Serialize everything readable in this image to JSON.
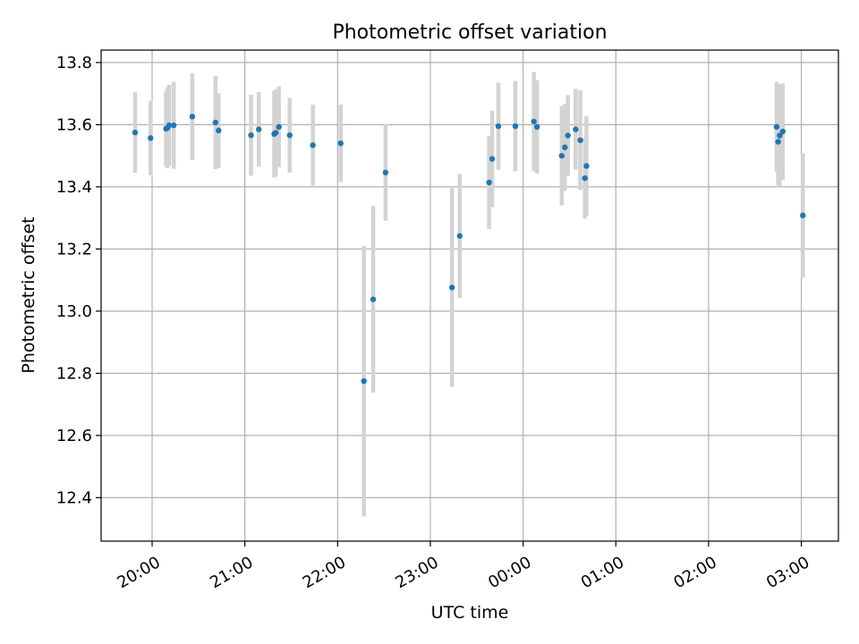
{
  "chart_data": {
    "type": "scatter",
    "title": "Photometric offset variation",
    "xlabel": "UTC time",
    "ylabel": "Photometric offset",
    "xlim": [
      "19:27",
      "03:24"
    ],
    "ylim": [
      12.26,
      13.84
    ],
    "x_ticks": [
      "20:00",
      "21:00",
      "22:00",
      "23:00",
      "00:00",
      "01:00",
      "02:00",
      "03:00"
    ],
    "y_ticks": [
      12.4,
      12.6,
      12.8,
      13.0,
      13.2,
      13.4,
      13.6,
      13.8
    ],
    "grid": true,
    "errorbar_color": "#d3d3d3",
    "marker_color": "#1f77b4",
    "points": [
      {
        "t": "19:49",
        "y": 13.575,
        "err": 0.13
      },
      {
        "t": "19:59",
        "y": 13.557,
        "err": 0.12
      },
      {
        "t": "20:09",
        "y": 13.587,
        "err": 0.12
      },
      {
        "t": "20:10",
        "y": 13.59,
        "err": 0.13
      },
      {
        "t": "20:11",
        "y": 13.598,
        "err": 0.13
      },
      {
        "t": "20:14",
        "y": 13.598,
        "err": 0.14
      },
      {
        "t": "20:26",
        "y": 13.626,
        "err": 0.14
      },
      {
        "t": "20:41",
        "y": 13.607,
        "err": 0.15
      },
      {
        "t": "20:43",
        "y": 13.581,
        "err": 0.12
      },
      {
        "t": "21:04",
        "y": 13.566,
        "err": 0.13
      },
      {
        "t": "21:09",
        "y": 13.585,
        "err": 0.12
      },
      {
        "t": "21:19",
        "y": 13.57,
        "err": 0.14
      },
      {
        "t": "21:20",
        "y": 13.574,
        "err": 0.14
      },
      {
        "t": "21:22",
        "y": 13.593,
        "err": 0.13
      },
      {
        "t": "21:29",
        "y": 13.566,
        "err": 0.12
      },
      {
        "t": "21:44",
        "y": 13.534,
        "err": 0.13
      },
      {
        "t": "22:02",
        "y": 13.54,
        "err": 0.125
      },
      {
        "t": "22:17",
        "y": 12.775,
        "err": 0.435
      },
      {
        "t": "22:23",
        "y": 13.038,
        "err": 0.3
      },
      {
        "t": "22:31",
        "y": 13.446,
        "err": 0.155
      },
      {
        "t": "23:14",
        "y": 13.076,
        "err": 0.32
      },
      {
        "t": "23:19",
        "y": 13.242,
        "err": 0.2
      },
      {
        "t": "23:38",
        "y": 13.414,
        "err": 0.15
      },
      {
        "t": "23:40",
        "y": 13.49,
        "err": 0.155
      },
      {
        "t": "23:44",
        "y": 13.595,
        "err": 0.14
      },
      {
        "t": "23:55",
        "y": 13.595,
        "err": 0.145
      },
      {
        "t": "00:07",
        "y": 13.61,
        "err": 0.16
      },
      {
        "t": "00:09",
        "y": 13.593,
        "err": 0.15
      },
      {
        "t": "00:25",
        "y": 13.5,
        "err": 0.16
      },
      {
        "t": "00:27",
        "y": 13.527,
        "err": 0.14
      },
      {
        "t": "00:29",
        "y": 13.565,
        "err": 0.13
      },
      {
        "t": "00:34",
        "y": 13.585,
        "err": 0.13
      },
      {
        "t": "00:37",
        "y": 13.55,
        "err": 0.16
      },
      {
        "t": "00:40",
        "y": 13.428,
        "err": 0.13
      },
      {
        "t": "00:41",
        "y": 13.467,
        "err": 0.16
      },
      {
        "t": "02:44",
        "y": 13.593,
        "err": 0.145
      },
      {
        "t": "02:45",
        "y": 13.545,
        "err": 0.14
      },
      {
        "t": "02:46",
        "y": 13.565,
        "err": 0.165
      },
      {
        "t": "02:48",
        "y": 13.578,
        "err": 0.155
      },
      {
        "t": "03:01",
        "y": 13.308,
        "err": 0.2
      }
    ]
  }
}
